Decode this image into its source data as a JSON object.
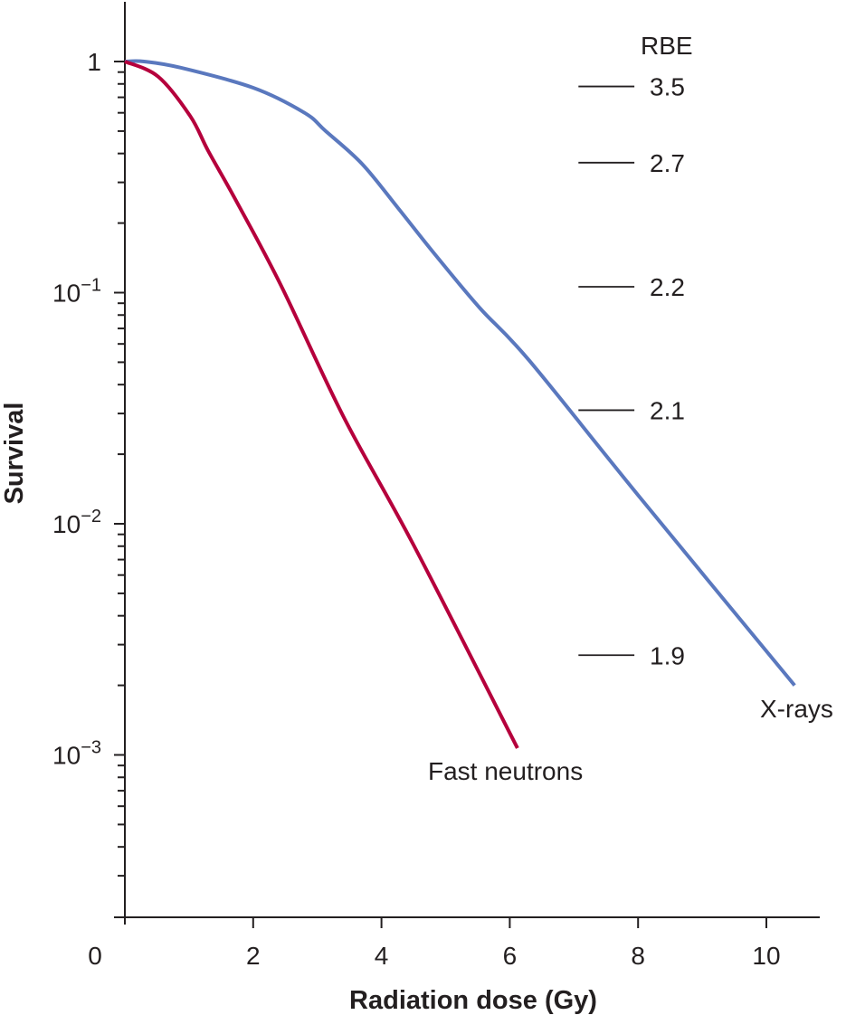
{
  "chart_data": {
    "type": "line",
    "title": "",
    "xlabel": "Radiation dose (Gy)",
    "ylabel": "Survival",
    "xlim": [
      0,
      10.9
    ],
    "ylim": [
      0.0002,
      1.8
    ],
    "yscale": "log",
    "grid": false,
    "x_ticks": [
      0,
      2,
      4,
      6,
      8,
      10
    ],
    "x_tick_labels": [
      "0",
      "2",
      "4",
      "6",
      "8",
      "10"
    ],
    "y_ticks": [
      1,
      0.1,
      0.01,
      0.001
    ],
    "y_tick_labels": [
      {
        "base": "1",
        "exp": ""
      },
      {
        "base": "10",
        "exp": "−1"
      },
      {
        "base": "10",
        "exp": "−2"
      },
      {
        "base": "10",
        "exp": "−3"
      }
    ],
    "series": [
      {
        "name": "X-rays",
        "label": "X-rays",
        "color": "#5a78be",
        "x": [
          0.0,
          0.3,
          0.87,
          2.0,
          2.8,
          3.13,
          3.7,
          4.26,
          4.82,
          5.53,
          6.3,
          8.0,
          10.44
        ],
        "y": [
          1.0,
          1.0,
          0.94,
          0.77,
          0.6,
          0.5,
          0.36,
          0.232,
          0.148,
          0.086,
          0.051,
          0.0133,
          0.002
        ]
      },
      {
        "name": "Fast neutrons",
        "label": "Fast neutrons",
        "color": "#b5003c",
        "x": [
          0.0,
          0.52,
          1.02,
          1.3,
          1.72,
          2.43,
          3.41,
          4.5,
          6.12
        ],
        "y": [
          1.0,
          0.86,
          0.58,
          0.41,
          0.254,
          0.108,
          0.029,
          0.0081,
          0.00107
        ]
      }
    ],
    "rbe": {
      "title": "RBE",
      "x_range": [
        7.0,
        7.9
      ],
      "marks": [
        {
          "survival": 0.78,
          "label": "3.5"
        },
        {
          "survival": 0.365,
          "label": "2.7"
        },
        {
          "survival": 0.106,
          "label": "2.2"
        },
        {
          "survival": 0.031,
          "label": "2.1"
        },
        {
          "survival": 0.0027,
          "label": "1.9"
        }
      ]
    }
  }
}
